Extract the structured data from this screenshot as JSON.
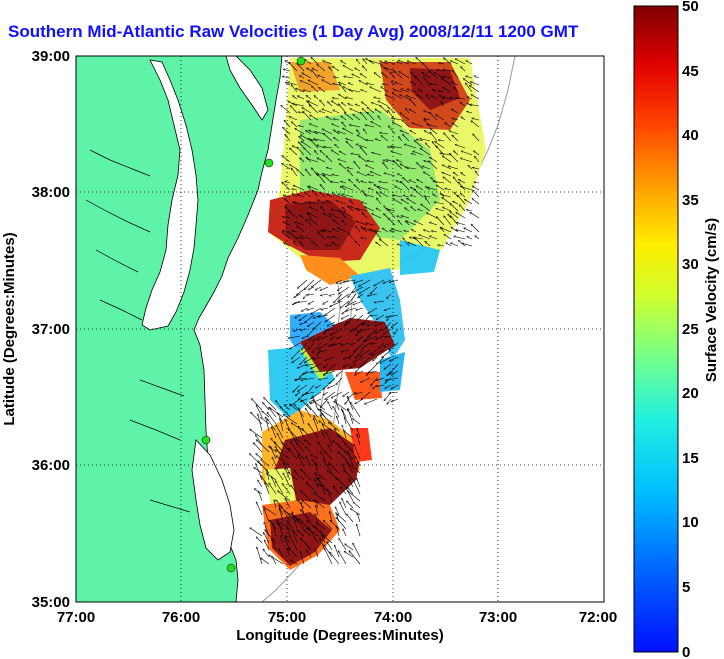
{
  "title": "Southern Mid-Atlantic Raw Velocities (1 Day Avg) 2008/12/11 1200 GMT",
  "axes": {
    "xlabel": "Longitude (Degrees:Minutes)",
    "ylabel": "Latitude (Degrees:Minutes)",
    "xticks": [
      "77:00",
      "76:00",
      "75:00",
      "74:00",
      "73:00",
      "72:00"
    ],
    "yticks": [
      "39:00",
      "38:00",
      "37:00",
      "36:00",
      "35:00"
    ]
  },
  "colorbar": {
    "label": "Surface Velocity (cm/s)",
    "ticks": [
      "50",
      "45",
      "40",
      "35",
      "30",
      "25",
      "20",
      "15",
      "10",
      "5",
      "0"
    ],
    "min": 0,
    "max": 50
  },
  "colors": {
    "land": "#5ff3a8",
    "title": "#1010ff",
    "station": "#22dd22"
  }
}
